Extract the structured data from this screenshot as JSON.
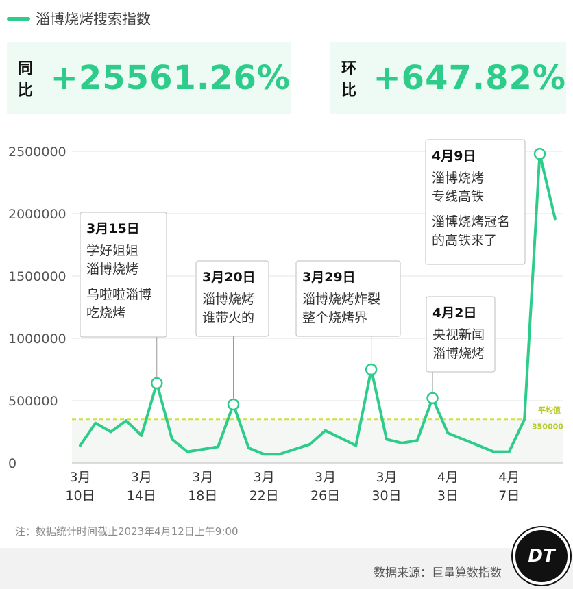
{
  "legend": {
    "label": "淄博烧烤搜索指数",
    "color": "#2ecc8a"
  },
  "stats": [
    {
      "label": "同比",
      "value": "+25561.26%"
    },
    {
      "label": "环比",
      "value": "+647.82%"
    }
  ],
  "chart_data": {
    "type": "line",
    "y_ticks": [
      0,
      500000,
      1000000,
      1500000,
      2000000,
      2500000
    ],
    "y_tick_labels": [
      "0",
      "500000",
      "1000000",
      "1500000",
      "2000000",
      "2500000"
    ],
    "ylim": [
      0,
      2500000
    ],
    "x": [
      "3月10日",
      "3月11日",
      "3月12日",
      "3月13日",
      "3月14日",
      "3月15日",
      "3月16日",
      "3月17日",
      "3月18日",
      "3月19日",
      "3月20日",
      "3月21日",
      "3月22日",
      "3月23日",
      "3月24日",
      "3月25日",
      "3月26日",
      "3月27日",
      "3月28日",
      "3月29日",
      "3月30日",
      "3月31日",
      "4月1日",
      "4月2日",
      "4月3日",
      "4月4日",
      "4月5日",
      "4月6日",
      "4月7日",
      "4月8日",
      "4月9日",
      "4月10日"
    ],
    "x_tick_labels": [
      {
        "index": 0,
        "line1": "3月",
        "line2": "10日"
      },
      {
        "index": 4,
        "line1": "3月",
        "line2": "14日"
      },
      {
        "index": 8,
        "line1": "3月",
        "line2": "18日"
      },
      {
        "index": 12,
        "line1": "3月",
        "line2": "22日"
      },
      {
        "index": 16,
        "line1": "3月",
        "line2": "26日"
      },
      {
        "index": 20,
        "line1": "3月",
        "line2": "30日"
      },
      {
        "index": 24,
        "line1": "4月",
        "line2": "3日"
      },
      {
        "index": 28,
        "line1": "4月",
        "line2": "7日"
      }
    ],
    "series": [
      {
        "color": "#2ecc8a",
        "values": [
          140000,
          320000,
          250000,
          340000,
          220000,
          640000,
          190000,
          90000,
          110000,
          130000,
          470000,
          120000,
          70000,
          70000,
          110000,
          150000,
          260000,
          200000,
          140000,
          750000,
          190000,
          160000,
          180000,
          520000,
          240000,
          190000,
          140000,
          90000,
          90000,
          350000,
          2480000,
          1960000
        ]
      }
    ],
    "average": {
      "label": "平均值",
      "value_label": "350000",
      "value": 350000,
      "color": "#cfe23c"
    },
    "annotations": [
      {
        "index": 5,
        "date": "3月15日",
        "lines": [
          "学好姐姐",
          "淄博烧烤",
          "",
          "乌啦啦淄博",
          "吃烧烤"
        ]
      },
      {
        "index": 10,
        "date": "3月20日",
        "lines": [
          "淄博烧烤",
          "谁带火的"
        ]
      },
      {
        "index": 19,
        "date": "3月29日",
        "lines": [
          "淄博烧烤炸裂",
          "整个烧烤界"
        ]
      },
      {
        "index": 23,
        "date": "4月2日",
        "lines": [
          "央视新闻",
          "淄博烧烤"
        ]
      },
      {
        "index": 30,
        "date": "4月9日",
        "lines": [
          "淄博烧烤",
          "专线高铁",
          "",
          "淄博烧烤冠名",
          "的高铁来了"
        ]
      }
    ]
  },
  "note": "注：数据统计时间截止2023年4月12日上午9:00",
  "source": "数据来源：巨量算数指数",
  "logo": "DT"
}
